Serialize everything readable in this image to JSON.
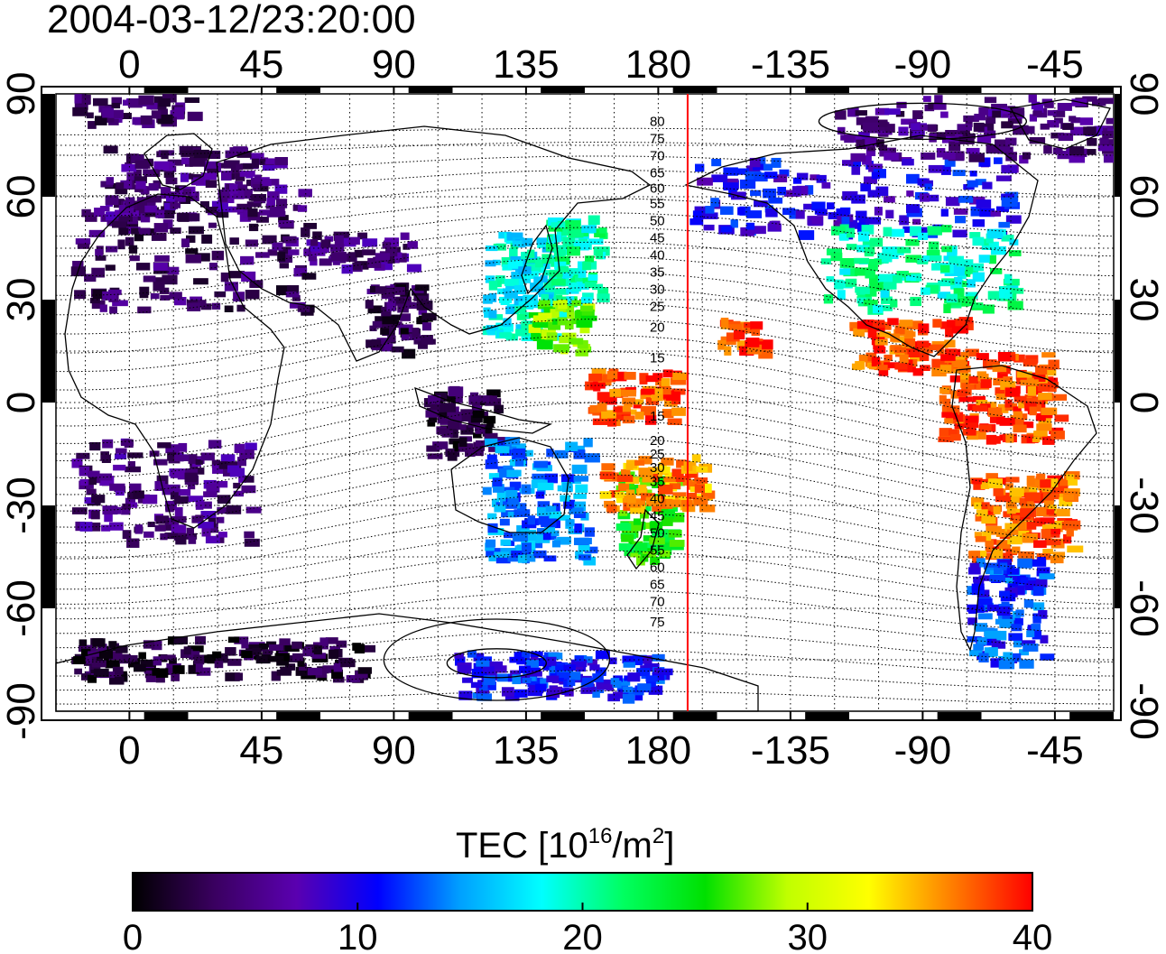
{
  "timestamp": "2004-03-12/23:20:00",
  "axes": {
    "lon_ticks": [
      "0",
      "45",
      "90",
      "135",
      "180",
      "-135",
      "-90",
      "-45"
    ],
    "lon_values": [
      0,
      45,
      90,
      135,
      180,
      225,
      270,
      315
    ],
    "lat_ticks": [
      "90",
      "60",
      "30",
      "0",
      "-30",
      "-60",
      "-90"
    ],
    "lat_values": [
      90,
      60,
      30,
      0,
      -30,
      -60,
      -90
    ],
    "lon_range": [
      -25,
      335
    ],
    "lat_range": [
      -90,
      90
    ],
    "grid": true,
    "grid_step_lon": 15,
    "grid_step_lat": 15
  },
  "terminator_lon": 190,
  "contour_labels": [
    "80",
    "75",
    "70",
    "65",
    "60",
    "55",
    "50",
    "45",
    "40",
    "35",
    "30",
    "25",
    "20",
    "15",
    "15",
    "20",
    "25",
    "30",
    "35",
    "40",
    "45",
    "50",
    "55",
    "60",
    "65",
    "70",
    "75"
  ],
  "contour_label_lats": [
    82,
    77,
    72,
    67,
    62.5,
    58,
    53,
    48,
    43,
    38,
    33,
    28,
    22,
    13,
    -4,
    -11,
    -15,
    -19,
    -23,
    -28,
    -33,
    -38,
    -43,
    -48,
    -53,
    -58,
    -64
  ],
  "colorbar": {
    "title_main": "TEC  [10",
    "title_sup1": "16",
    "title_mid": "/m",
    "title_sup2": "2",
    "title_end": "]",
    "min": 0,
    "max": 40,
    "tick_labels": [
      "0",
      "10",
      "20",
      "30",
      "40"
    ],
    "tick_values": [
      0,
      10,
      20,
      30,
      40
    ],
    "colormap": [
      "#000000",
      "#3a0060",
      "#5a00b0",
      "#0000ff",
      "#00a0ff",
      "#00ffff",
      "#00ff60",
      "#00e000",
      "#c0ff00",
      "#ffff00",
      "#ff8000",
      "#ff0000"
    ]
  },
  "chart_data": {
    "type": "heatmap",
    "value_name": "TEC",
    "regions": [
      {
        "lon": [
          -20,
          60
        ],
        "lat": [
          28,
          65
        ],
        "tec": 4
      },
      {
        "lon": [
          -10,
          50
        ],
        "lat": [
          55,
          75
        ],
        "tec": 5
      },
      {
        "lon": [
          60,
          95
        ],
        "lat": [
          40,
          50
        ],
        "tec": 5
      },
      {
        "lon": [
          80,
          100
        ],
        "lat": [
          15,
          35
        ],
        "tec": 3
      },
      {
        "lon": [
          100,
          125
        ],
        "lat": [
          -15,
          5
        ],
        "tec": 2
      },
      {
        "lon": [
          -20,
          40
        ],
        "lat": [
          -40,
          -10
        ],
        "tec": 5
      },
      {
        "lon": [
          120,
          145
        ],
        "lat": [
          20,
          50
        ],
        "tec": 18
      },
      {
        "lon": [
          140,
          160
        ],
        "lat": [
          30,
          55
        ],
        "tec": 20
      },
      {
        "lon": [
          135,
          155
        ],
        "lat": [
          15,
          30
        ],
        "tec": 28
      },
      {
        "lon": [
          120,
          155
        ],
        "lat": [
          -45,
          -10
        ],
        "tec": 14
      },
      {
        "lon": [
          165,
          185
        ],
        "lat": [
          -45,
          -20
        ],
        "tec": 25
      },
      {
        "lon": [
          160,
          195
        ],
        "lat": [
          -30,
          -15
        ],
        "tec": 36
      },
      {
        "lon": [
          155,
          185
        ],
        "lat": [
          -5,
          10
        ],
        "tec": 38
      },
      {
        "lon": [
          200,
          215
        ],
        "lat": [
          15,
          25
        ],
        "tec": 38
      },
      {
        "lon": [
          190,
          300
        ],
        "lat": [
          50,
          72
        ],
        "tec": 10
      },
      {
        "lon": [
          235,
          300
        ],
        "lat": [
          28,
          52
        ],
        "tec": 20
      },
      {
        "lon": [
          245,
          285
        ],
        "lat": [
          10,
          25
        ],
        "tec": 38
      },
      {
        "lon": [
          275,
          315
        ],
        "lat": [
          -10,
          15
        ],
        "tec": 38
      },
      {
        "lon": [
          285,
          320
        ],
        "lat": [
          -45,
          -20
        ],
        "tec": 37
      },
      {
        "lon": [
          285,
          310
        ],
        "lat": [
          -75,
          -45
        ],
        "tec": 12
      },
      {
        "lon": [
          -20,
          80
        ],
        "lat": [
          -80,
          -68
        ],
        "tec": 2
      },
      {
        "lon": [
          110,
          180
        ],
        "lat": [
          -85,
          -72
        ],
        "tec": 11
      },
      {
        "lon": [
          240,
          335
        ],
        "lat": [
          72,
          90
        ],
        "tec": 5
      },
      {
        "lon": [
          -20,
          20
        ],
        "lat": [
          82,
          90
        ],
        "tec": 4
      }
    ]
  }
}
